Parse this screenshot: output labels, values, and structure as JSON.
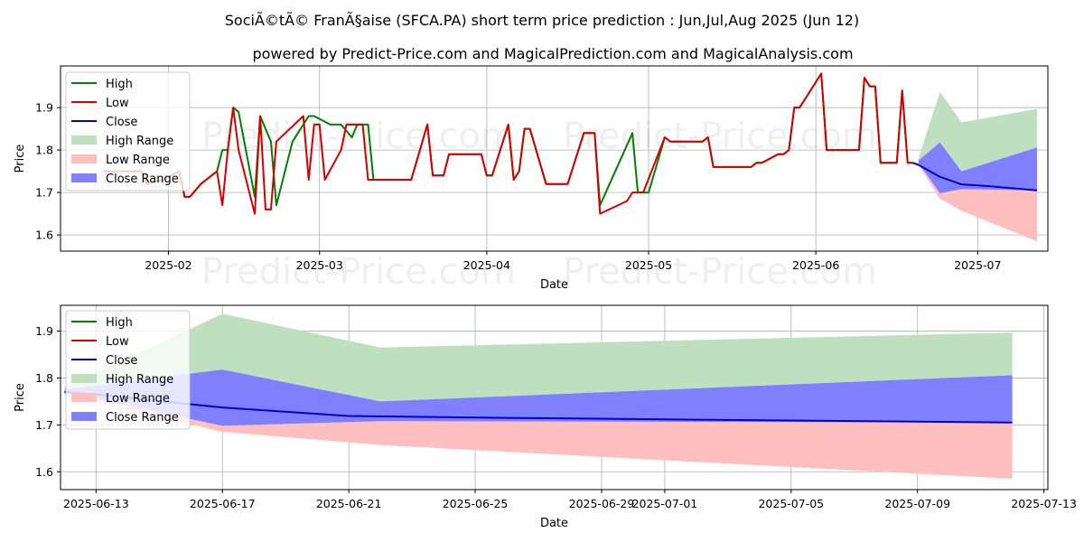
{
  "title": "SociÃ©tÃ© FranÃ§aise (SFCA.PA) short term price prediction : Jun,Jul,Aug 2025 (Jun 12)",
  "subtitle": "powered by Predict-Price.com and MagicalPrediction.com and MagicalAnalysis.com",
  "watermark": "Predict-Price.com",
  "colors": {
    "high": "#008000",
    "low": "#d40000",
    "close": "#0000cc",
    "high_range": "#bfe0bf",
    "low_range": "#ffbfbf",
    "close_range": "#8080ff",
    "grid": "#b0b0b0"
  },
  "chart_data": [
    {
      "type": "line",
      "panel": "overview",
      "xlabel": "Date",
      "ylabel": "Price",
      "xlim": [
        "2025-01-12",
        "2025-07-14"
      ],
      "ylim": [
        1.562,
        1.998
      ],
      "xticks": [
        "2025-02-01",
        "2025-03-01",
        "2025-04-01",
        "2025-05-01",
        "2025-06-01",
        "2025-07-01"
      ],
      "xtick_labels": [
        "2025-02",
        "2025-03",
        "2025-04",
        "2025-05",
        "2025-06",
        "2025-07"
      ],
      "yticks": [
        1.6,
        1.7,
        1.8,
        1.9
      ],
      "ytick_labels": [
        "1.6",
        "1.7",
        "1.8",
        "1.9"
      ],
      "legend": [
        "High",
        "Low",
        "Close",
        "High Range",
        "Low Range",
        "Close Range"
      ],
      "high_points": [
        [
          "2025-01-20",
          1.75
        ],
        [
          "2025-01-27",
          1.75
        ],
        [
          "2025-01-28",
          1.72
        ],
        [
          "2025-01-31",
          1.73
        ],
        [
          "2025-02-03",
          1.75
        ],
        [
          "2025-02-04",
          1.69
        ],
        [
          "2025-02-05",
          1.69
        ],
        [
          "2025-02-07",
          1.72
        ],
        [
          "2025-02-10",
          1.75
        ],
        [
          "2025-02-11",
          1.8
        ],
        [
          "2025-02-12",
          1.8
        ],
        [
          "2025-02-13",
          1.9
        ],
        [
          "2025-02-14",
          1.89
        ],
        [
          "2025-02-17",
          1.69
        ],
        [
          "2025-02-18",
          1.88
        ],
        [
          "2025-02-20",
          1.82
        ],
        [
          "2025-02-21",
          1.67
        ],
        [
          "2025-02-24",
          1.82
        ],
        [
          "2025-02-27",
          1.88
        ],
        [
          "2025-02-28",
          1.88
        ],
        [
          "2025-03-03",
          1.86
        ],
        [
          "2025-03-04",
          1.86
        ],
        [
          "2025-03-05",
          1.86
        ],
        [
          "2025-03-07",
          1.83
        ],
        [
          "2025-03-08",
          1.86
        ],
        [
          "2025-03-10",
          1.86
        ],
        [
          "2025-03-11",
          1.73
        ],
        [
          "2025-03-18",
          1.73
        ],
        [
          "2025-03-21",
          1.86
        ],
        [
          "2025-03-22",
          1.74
        ],
        [
          "2025-03-24",
          1.74
        ],
        [
          "2025-03-25",
          1.79
        ],
        [
          "2025-03-31",
          1.79
        ],
        [
          "2025-04-01",
          1.74
        ],
        [
          "2025-04-02",
          1.74
        ],
        [
          "2025-04-05",
          1.86
        ],
        [
          "2025-04-06",
          1.73
        ],
        [
          "2025-04-07",
          1.75
        ],
        [
          "2025-04-08",
          1.85
        ],
        [
          "2025-04-09",
          1.85
        ],
        [
          "2025-04-12",
          1.72
        ],
        [
          "2025-04-16",
          1.72
        ],
        [
          "2025-04-19",
          1.84
        ],
        [
          "2025-04-21",
          1.84
        ],
        [
          "2025-04-22",
          1.67
        ],
        [
          "2025-04-28",
          1.84
        ],
        [
          "2025-04-29",
          1.7
        ],
        [
          "2025-05-01",
          1.7
        ],
        [
          "2025-05-04",
          1.83
        ],
        [
          "2025-05-05",
          1.82
        ],
        [
          "2025-05-11",
          1.82
        ],
        [
          "2025-05-12",
          1.83
        ],
        [
          "2025-05-13",
          1.76
        ],
        [
          "2025-05-20",
          1.76
        ],
        [
          "2025-05-21",
          1.77
        ],
        [
          "2025-05-22",
          1.77
        ],
        [
          "2025-05-25",
          1.79
        ],
        [
          "2025-05-26",
          1.79
        ],
        [
          "2025-05-27",
          1.8
        ],
        [
          "2025-05-28",
          1.9
        ],
        [
          "2025-05-29",
          1.9
        ],
        [
          "2025-06-02",
          1.98
        ],
        [
          "2025-06-03",
          1.8
        ],
        [
          "2025-06-09",
          1.8
        ],
        [
          "2025-06-10",
          1.97
        ],
        [
          "2025-06-11",
          1.95
        ],
        [
          "2025-06-12",
          1.95
        ],
        [
          "2025-06-13",
          1.77
        ],
        [
          "2025-06-16",
          1.77
        ],
        [
          "2025-06-17",
          1.94
        ],
        [
          "2025-06-18",
          1.77
        ],
        [
          "2025-06-19",
          1.77
        ]
      ],
      "low_points": [
        [
          "2025-01-20",
          1.75
        ],
        [
          "2025-01-27",
          1.75
        ],
        [
          "2025-01-28",
          1.72
        ],
        [
          "2025-01-31",
          1.73
        ],
        [
          "2025-02-03",
          1.75
        ],
        [
          "2025-02-04",
          1.69
        ],
        [
          "2025-02-05",
          1.69
        ],
        [
          "2025-02-07",
          1.72
        ],
        [
          "2025-02-10",
          1.75
        ],
        [
          "2025-02-11",
          1.67
        ],
        [
          "2025-02-12",
          1.8
        ],
        [
          "2025-02-13",
          1.9
        ],
        [
          "2025-02-14",
          1.8
        ],
        [
          "2025-02-17",
          1.65
        ],
        [
          "2025-02-18",
          1.88
        ],
        [
          "2025-02-19",
          1.66
        ],
        [
          "2025-02-20",
          1.66
        ],
        [
          "2025-02-21",
          1.82
        ],
        [
          "2025-02-26",
          1.88
        ],
        [
          "2025-02-27",
          1.73
        ],
        [
          "2025-02-28",
          1.86
        ],
        [
          "2025-03-01",
          1.86
        ],
        [
          "2025-03-02",
          1.73
        ],
        [
          "2025-03-05",
          1.8
        ],
        [
          "2025-03-06",
          1.86
        ],
        [
          "2025-03-09",
          1.86
        ],
        [
          "2025-03-10",
          1.73
        ],
        [
          "2025-03-18",
          1.73
        ],
        [
          "2025-03-21",
          1.86
        ],
        [
          "2025-03-22",
          1.74
        ],
        [
          "2025-03-24",
          1.74
        ],
        [
          "2025-03-25",
          1.79
        ],
        [
          "2025-03-31",
          1.79
        ],
        [
          "2025-04-01",
          1.74
        ],
        [
          "2025-04-02",
          1.74
        ],
        [
          "2025-04-05",
          1.86
        ],
        [
          "2025-04-06",
          1.73
        ],
        [
          "2025-04-07",
          1.75
        ],
        [
          "2025-04-08",
          1.85
        ],
        [
          "2025-04-09",
          1.85
        ],
        [
          "2025-04-12",
          1.72
        ],
        [
          "2025-04-16",
          1.72
        ],
        [
          "2025-04-19",
          1.84
        ],
        [
          "2025-04-21",
          1.84
        ],
        [
          "2025-04-22",
          1.65
        ],
        [
          "2025-04-27",
          1.68
        ],
        [
          "2025-04-28",
          1.7
        ],
        [
          "2025-04-30",
          1.7
        ],
        [
          "2025-05-04",
          1.83
        ],
        [
          "2025-05-05",
          1.82
        ],
        [
          "2025-05-11",
          1.82
        ],
        [
          "2025-05-12",
          1.83
        ],
        [
          "2025-05-13",
          1.76
        ],
        [
          "2025-05-20",
          1.76
        ],
        [
          "2025-05-21",
          1.77
        ],
        [
          "2025-05-22",
          1.77
        ],
        [
          "2025-05-25",
          1.79
        ],
        [
          "2025-05-26",
          1.79
        ],
        [
          "2025-05-27",
          1.8
        ],
        [
          "2025-05-28",
          1.9
        ],
        [
          "2025-05-29",
          1.9
        ],
        [
          "2025-06-02",
          1.98
        ],
        [
          "2025-06-03",
          1.8
        ],
        [
          "2025-06-09",
          1.8
        ],
        [
          "2025-06-10",
          1.97
        ],
        [
          "2025-06-11",
          1.95
        ],
        [
          "2025-06-12",
          1.95
        ],
        [
          "2025-06-13",
          1.77
        ],
        [
          "2025-06-16",
          1.77
        ],
        [
          "2025-06-17",
          1.94
        ],
        [
          "2025-06-18",
          1.77
        ],
        [
          "2025-06-19",
          1.77
        ]
      ],
      "close_points": [
        [
          "2025-06-19",
          1.77
        ],
        [
          "2025-06-20",
          1.765
        ],
        [
          "2025-06-24",
          1.737
        ],
        [
          "2025-06-28",
          1.719
        ],
        [
          "2025-07-03",
          1.715
        ],
        [
          "2025-07-12",
          1.705
        ]
      ],
      "high_range": [
        [
          "2025-06-20",
          1.78
        ],
        [
          "2025-06-24",
          1.937
        ],
        [
          "2025-06-28",
          1.865
        ],
        [
          "2025-07-12",
          1.897
        ]
      ],
      "low_range": [
        [
          "2025-06-20",
          1.765
        ],
        [
          "2025-06-24",
          1.685
        ],
        [
          "2025-06-28",
          1.657
        ],
        [
          "2025-07-12",
          1.585
        ]
      ],
      "close_range": {
        "upper": [
          [
            "2025-06-20",
            1.775
          ],
          [
            "2025-06-24",
            1.818
          ],
          [
            "2025-06-28",
            1.75
          ],
          [
            "2025-07-12",
            1.806
          ]
        ],
        "lower": [
          [
            "2025-06-20",
            1.77
          ],
          [
            "2025-06-24",
            1.698
          ],
          [
            "2025-06-28",
            1.708
          ],
          [
            "2025-07-12",
            1.705
          ]
        ]
      }
    },
    {
      "type": "line",
      "panel": "forecast",
      "xlabel": "Date",
      "ylabel": "Price",
      "xlim": [
        "2025-06-11T21:00",
        "2025-07-13T03:00"
      ],
      "ylim": [
        1.562,
        1.955
      ],
      "xticks": [
        "2025-06-13",
        "2025-06-17",
        "2025-06-21",
        "2025-06-25",
        "2025-06-29",
        "2025-07-01",
        "2025-07-05",
        "2025-07-09",
        "2025-07-13"
      ],
      "xtick_labels": [
        "2025-06-13",
        "2025-06-17",
        "2025-06-21",
        "2025-06-25",
        "2025-06-29",
        "2025-07-01",
        "2025-07-05",
        "2025-07-09",
        "2025-07-13"
      ],
      "yticks": [
        1.6,
        1.7,
        1.8,
        1.9
      ],
      "ytick_labels": [
        "1.6",
        "1.7",
        "1.8",
        "1.9"
      ],
      "legend": [
        "High",
        "Low",
        "Close",
        "High Range",
        "Low Range",
        "Close Range"
      ],
      "close_points": [
        [
          "2025-06-12",
          1.77
        ],
        [
          "2025-06-13",
          1.765
        ],
        [
          "2025-06-17",
          1.737
        ],
        [
          "2025-06-21",
          1.719
        ],
        [
          "2025-06-26",
          1.715
        ],
        [
          "2025-07-12",
          1.705
        ]
      ],
      "high_range": [
        [
          "2025-06-12",
          1.78
        ],
        [
          "2025-06-17",
          1.937
        ],
        [
          "2025-06-22",
          1.865
        ],
        [
          "2025-07-12",
          1.897
        ]
      ],
      "low_range": [
        [
          "2025-06-12",
          1.765
        ],
        [
          "2025-06-17",
          1.685
        ],
        [
          "2025-06-22",
          1.657
        ],
        [
          "2025-07-12",
          1.585
        ]
      ],
      "close_range": {
        "upper": [
          [
            "2025-06-12",
            1.775
          ],
          [
            "2025-06-17",
            1.818
          ],
          [
            "2025-06-22",
            1.75
          ],
          [
            "2025-07-12",
            1.806
          ]
        ],
        "lower": [
          [
            "2025-06-12",
            1.77
          ],
          [
            "2025-06-17",
            1.698
          ],
          [
            "2025-06-22",
            1.708
          ],
          [
            "2025-07-12",
            1.705
          ]
        ]
      }
    }
  ]
}
